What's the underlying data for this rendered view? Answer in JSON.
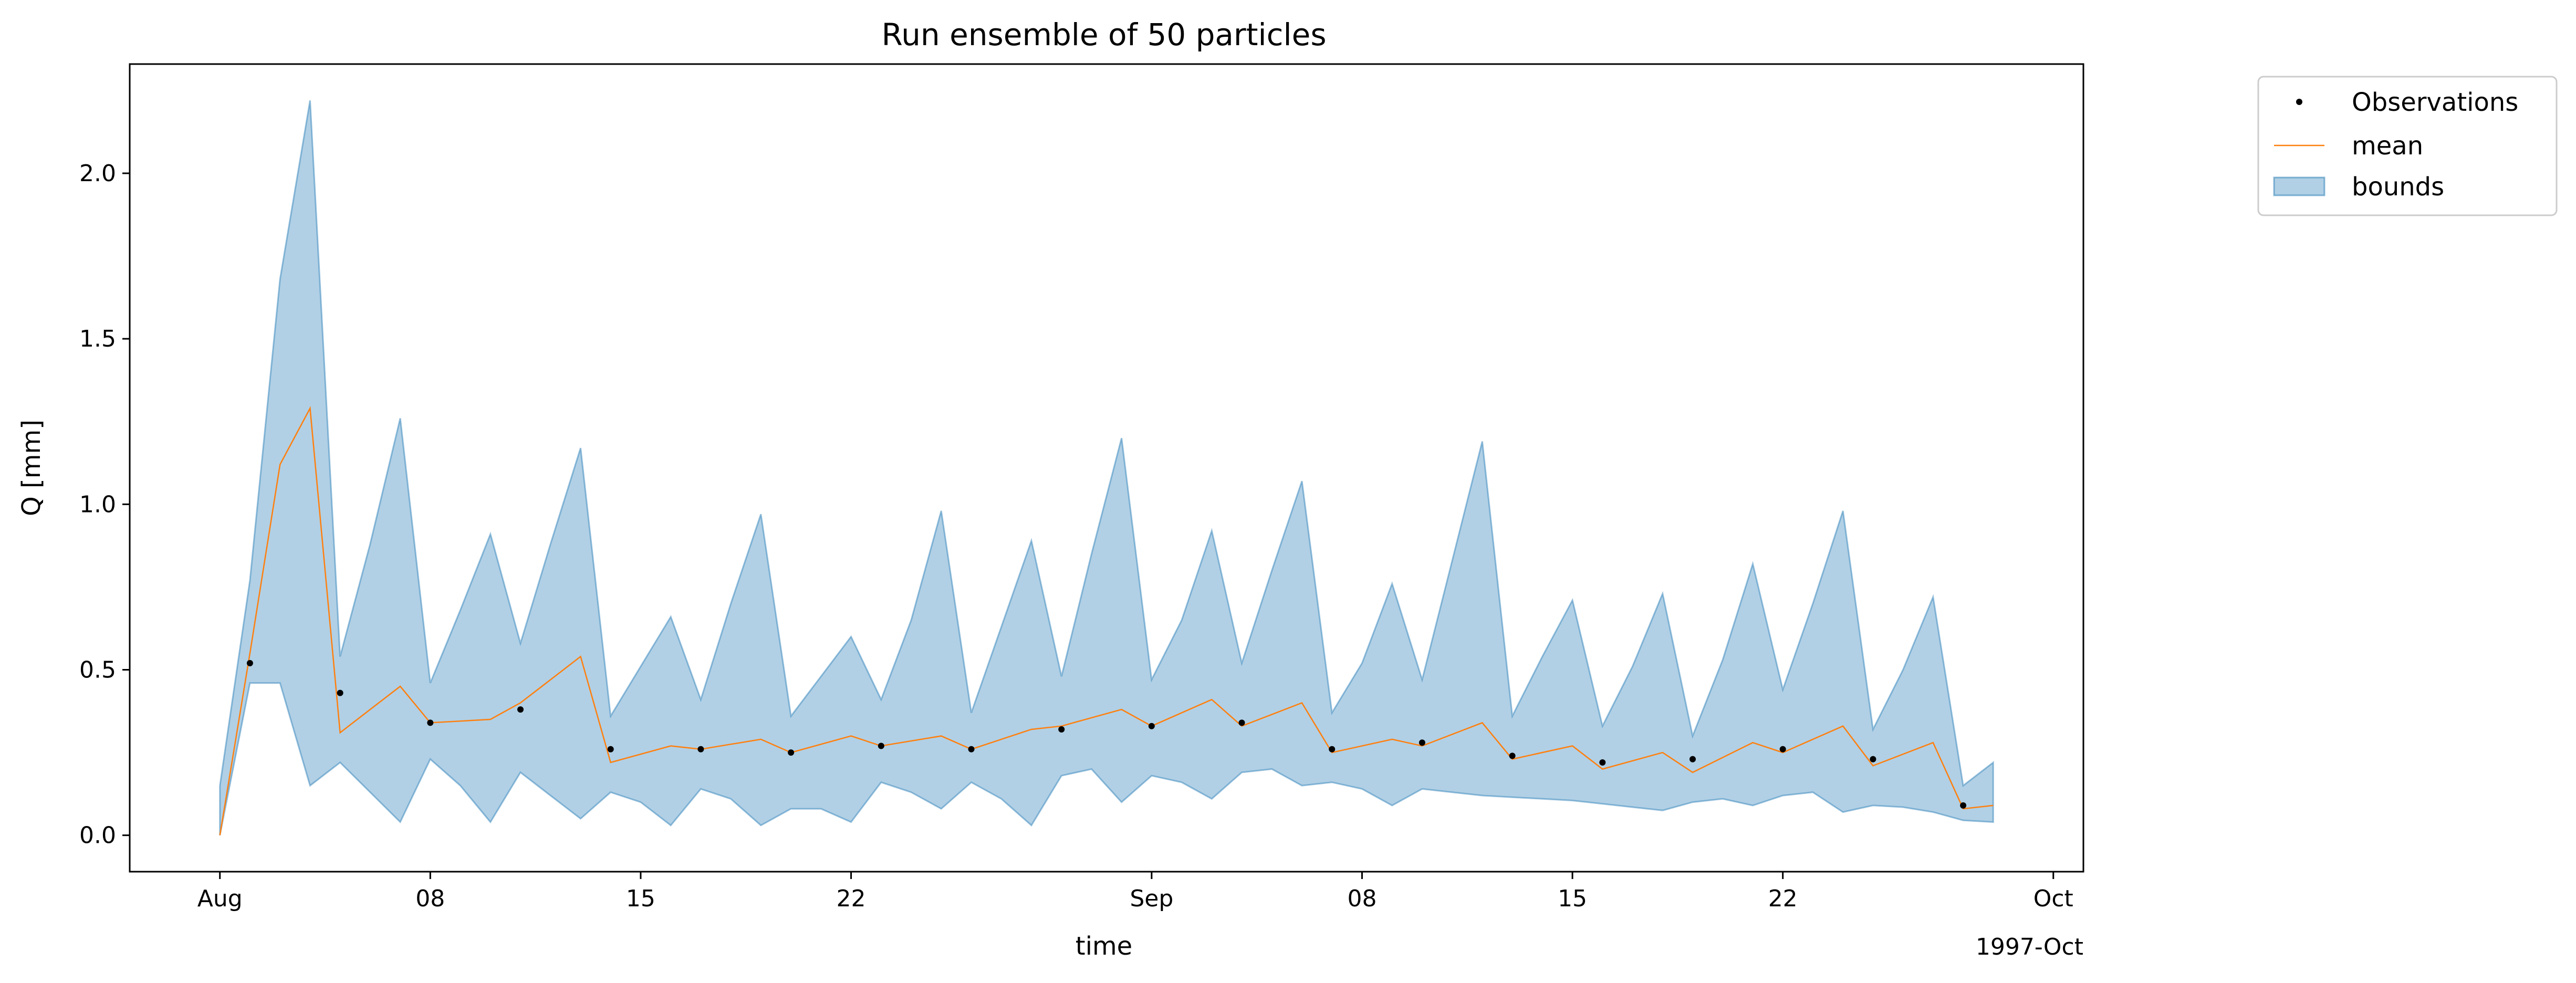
{
  "chart_data": {
    "type": "area",
    "title": "Run ensemble of 50 particles",
    "xlabel": "time",
    "ylabel": "Q [mm]",
    "x_offset_label": "1997-Oct",
    "x_range": [
      "1997-07-29",
      "1997-10-02"
    ],
    "ylim": [
      -0.11,
      2.33
    ],
    "yticks": [
      0.0,
      0.5,
      1.0,
      1.5,
      2.0
    ],
    "ytick_labels": [
      "0.0",
      "0.5",
      "1.0",
      "1.5",
      "2.0"
    ],
    "xticks": [
      {
        "date": "1997-08-01",
        "label": "Aug"
      },
      {
        "date": "1997-08-08",
        "label": "08"
      },
      {
        "date": "1997-08-15",
        "label": "15"
      },
      {
        "date": "1997-08-22",
        "label": "22"
      },
      {
        "date": "1997-09-01",
        "label": "Sep"
      },
      {
        "date": "1997-09-08",
        "label": "08"
      },
      {
        "date": "1997-09-15",
        "label": "15"
      },
      {
        "date": "1997-09-22",
        "label": "22"
      },
      {
        "date": "1997-10-01",
        "label": "Oct"
      }
    ],
    "grid": false,
    "legend_position": "outside-top-right",
    "legend": [
      {
        "label": "Observations",
        "kind": "point"
      },
      {
        "label": "mean",
        "kind": "line"
      },
      {
        "label": "bounds",
        "kind": "patch"
      }
    ],
    "colors": {
      "observations": "#000000",
      "mean": "#ff7f0e",
      "bounds_fill": "#1f77b4",
      "bounds_edge": "#1f77b4"
    },
    "bounds": {
      "x": [
        "1997-08-01",
        "1997-08-02",
        "1997-08-03",
        "1997-08-04",
        "1997-08-05",
        "1997-08-06",
        "1997-08-07",
        "1997-08-08",
        "1997-08-09",
        "1997-08-10",
        "1997-08-11",
        "1997-08-12",
        "1997-08-13",
        "1997-08-14",
        "1997-08-15",
        "1997-08-16",
        "1997-08-17",
        "1997-08-18",
        "1997-08-19",
        "1997-08-20",
        "1997-08-21",
        "1997-08-22",
        "1997-08-23",
        "1997-08-24",
        "1997-08-25",
        "1997-08-26",
        "1997-08-27",
        "1997-08-28",
        "1997-08-29",
        "1997-08-30",
        "1997-08-31",
        "1997-09-01",
        "1997-09-02",
        "1997-09-03",
        "1997-09-04",
        "1997-09-05",
        "1997-09-06",
        "1997-09-07",
        "1997-09-08",
        "1997-09-09",
        "1997-09-10",
        "1997-09-11",
        "1997-09-12",
        "1997-09-13",
        "1997-09-14",
        "1997-09-15",
        "1997-09-16",
        "1997-09-17",
        "1997-09-18",
        "1997-09-19",
        "1997-09-20",
        "1997-09-21",
        "1997-09-22",
        "1997-09-23",
        "1997-09-24",
        "1997-09-25",
        "1997-09-26",
        "1997-09-27",
        "1997-09-28",
        "1997-09-29"
      ],
      "upper": [
        0.15,
        0.77,
        1.68,
        2.22,
        0.54,
        0.88,
        1.26,
        0.46,
        0.68,
        0.91,
        0.58,
        0.88,
        1.17,
        0.36,
        0.51,
        0.66,
        0.41,
        0.7,
        0.97,
        0.36,
        0.48,
        0.6,
        0.41,
        0.65,
        0.98,
        0.37,
        0.63,
        0.89,
        0.48,
        0.85,
        1.2,
        0.47,
        0.65,
        0.92,
        0.52,
        0.8,
        1.07,
        0.37,
        0.52,
        0.76,
        0.47,
        0.83,
        1.19,
        0.36,
        0.54,
        0.71,
        0.33,
        0.51,
        0.73,
        0.3,
        0.53,
        0.82,
        0.44,
        0.7,
        0.98,
        0.32,
        0.5,
        0.72,
        0.15,
        0.22
      ],
      "lower": [
        0.0,
        0.46,
        0.46,
        0.15,
        0.22,
        0.13,
        0.04,
        0.23,
        0.15,
        0.04,
        0.19,
        0.12,
        0.05,
        0.13,
        0.1,
        0.03,
        0.14,
        0.11,
        0.03,
        0.08,
        0.08,
        0.04,
        0.16,
        0.13,
        0.08,
        0.16,
        0.11,
        0.03,
        0.18,
        0.2,
        0.1,
        0.18,
        0.16,
        0.11,
        0.19,
        0.2,
        0.15,
        0.16,
        0.14,
        0.09,
        0.14,
        0.13,
        0.12,
        0.115,
        0.11,
        0.105,
        0.095,
        0.085,
        0.075,
        0.1,
        0.11,
        0.09,
        0.12,
        0.13,
        0.07,
        0.09,
        0.085,
        0.07,
        0.045,
        0.04
      ]
    },
    "mean": {
      "x": [
        "1997-08-01",
        "1997-08-02",
        "1997-08-03",
        "1997-08-04",
        "1997-08-05",
        "1997-08-06",
        "1997-08-07",
        "1997-08-08",
        "1997-08-10",
        "1997-08-11",
        "1997-08-13",
        "1997-08-14",
        "1997-08-16",
        "1997-08-17",
        "1997-08-19",
        "1997-08-20",
        "1997-08-22",
        "1997-08-23",
        "1997-08-25",
        "1997-08-26",
        "1997-08-28",
        "1997-08-29",
        "1997-08-31",
        "1997-09-01",
        "1997-09-03",
        "1997-09-04",
        "1997-09-06",
        "1997-09-07",
        "1997-09-09",
        "1997-09-10",
        "1997-09-12",
        "1997-09-13",
        "1997-09-15",
        "1997-09-16",
        "1997-09-18",
        "1997-09-19",
        "1997-09-21",
        "1997-09-22",
        "1997-09-24",
        "1997-09-25",
        "1997-09-27",
        "1997-09-28",
        "1997-09-29"
      ],
      "y": [
        0.0,
        0.55,
        1.12,
        1.29,
        0.31,
        0.38,
        0.45,
        0.34,
        0.35,
        0.4,
        0.54,
        0.22,
        0.27,
        0.26,
        0.29,
        0.25,
        0.3,
        0.27,
        0.3,
        0.26,
        0.32,
        0.33,
        0.38,
        0.33,
        0.41,
        0.33,
        0.4,
        0.25,
        0.29,
        0.27,
        0.34,
        0.23,
        0.27,
        0.2,
        0.25,
        0.19,
        0.28,
        0.25,
        0.33,
        0.21,
        0.28,
        0.08,
        0.09
      ]
    },
    "observations": {
      "x": [
        "1997-08-02",
        "1997-08-05",
        "1997-08-08",
        "1997-08-11",
        "1997-08-14",
        "1997-08-17",
        "1997-08-20",
        "1997-08-23",
        "1997-08-26",
        "1997-08-29",
        "1997-09-01",
        "1997-09-04",
        "1997-09-07",
        "1997-09-10",
        "1997-09-13",
        "1997-09-16",
        "1997-09-19",
        "1997-09-22",
        "1997-09-25",
        "1997-09-28"
      ],
      "y": [
        0.52,
        0.43,
        0.34,
        0.38,
        0.26,
        0.26,
        0.25,
        0.27,
        0.26,
        0.32,
        0.33,
        0.34,
        0.26,
        0.28,
        0.24,
        0.22,
        0.23,
        0.26,
        0.23,
        0.09
      ]
    }
  }
}
